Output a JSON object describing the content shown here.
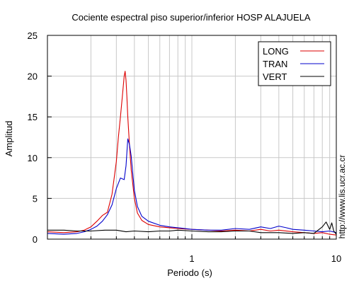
{
  "chart_data": {
    "type": "line",
    "title": "Cociente espectral piso superior/inferior  HOSP ALAJUELA",
    "xlabel": "Periodo (s)",
    "ylabel": "Amplitud",
    "xscale": "log",
    "xlim": [
      0.1,
      10
    ],
    "ylim": [
      0,
      25
    ],
    "x_tick_labels": [
      "1",
      "10"
    ],
    "y_ticks": [
      0,
      5,
      10,
      15,
      20,
      25
    ],
    "y_tick_labels": [
      "0",
      "5",
      "10",
      "15",
      "20",
      "25"
    ],
    "grid": true,
    "legend_position": "top-right",
    "side_text": "http://www.lis.ucr.ac.cr",
    "series": [
      {
        "name": "LONG",
        "color": "#dd0000",
        "x": [
          0.1,
          0.13,
          0.16,
          0.18,
          0.2,
          0.22,
          0.24,
          0.26,
          0.28,
          0.3,
          0.31,
          0.32,
          0.33,
          0.34,
          0.345,
          0.35,
          0.355,
          0.36,
          0.37,
          0.38,
          0.4,
          0.42,
          0.45,
          0.5,
          0.6,
          0.7,
          0.8,
          1.0,
          1.3,
          1.6,
          2.0,
          2.5,
          3.0,
          3.5,
          4.0,
          5.0,
          6.0,
          7.0,
          8.0,
          9.0,
          10.0
        ],
        "y": [
          0.9,
          0.8,
          0.9,
          1.1,
          1.5,
          2.2,
          2.9,
          3.3,
          5.5,
          9.5,
          12.5,
          15.0,
          17.5,
          20.0,
          20.6,
          19.5,
          17.5,
          15.0,
          11.5,
          8.5,
          5.0,
          3.2,
          2.3,
          1.8,
          1.5,
          1.4,
          1.3,
          1.2,
          1.1,
          1.0,
          1.1,
          1.0,
          1.2,
          1.0,
          1.1,
          0.9,
          0.8,
          0.7,
          0.8,
          0.6,
          0.5
        ]
      },
      {
        "name": "TRAN",
        "color": "#0000cc",
        "x": [
          0.1,
          0.13,
          0.16,
          0.18,
          0.2,
          0.22,
          0.24,
          0.26,
          0.28,
          0.3,
          0.32,
          0.34,
          0.35,
          0.36,
          0.37,
          0.38,
          0.39,
          0.4,
          0.42,
          0.45,
          0.5,
          0.6,
          0.7,
          0.8,
          1.0,
          1.3,
          1.6,
          2.0,
          2.5,
          3.0,
          3.5,
          4.0,
          4.5,
          5.0,
          6.0,
          7.0,
          8.0,
          9.0,
          10.0
        ],
        "y": [
          0.7,
          0.6,
          0.7,
          0.9,
          1.2,
          1.6,
          2.2,
          3.0,
          4.2,
          6.2,
          7.5,
          7.3,
          9.0,
          12.3,
          11.6,
          10.2,
          8.0,
          6.0,
          4.0,
          2.8,
          2.2,
          1.7,
          1.5,
          1.4,
          1.2,
          1.1,
          1.1,
          1.3,
          1.2,
          1.5,
          1.3,
          1.6,
          1.4,
          1.2,
          1.1,
          1.0,
          0.9,
          1.0,
          0.8
        ]
      },
      {
        "name": "VERT",
        "color": "#000000",
        "x": [
          0.1,
          0.13,
          0.16,
          0.2,
          0.25,
          0.3,
          0.35,
          0.4,
          0.5,
          0.6,
          0.7,
          0.8,
          1.0,
          1.3,
          1.6,
          2.0,
          2.5,
          3.0,
          4.0,
          5.0,
          6.0,
          7.0,
          8.0,
          8.5,
          9.0,
          9.3,
          9.6,
          10.0
        ],
        "y": [
          1.1,
          1.1,
          1.0,
          1.0,
          1.1,
          1.1,
          0.9,
          1.0,
          0.9,
          1.0,
          1.0,
          1.1,
          1.0,
          0.9,
          0.9,
          1.0,
          1.0,
          0.8,
          0.8,
          0.7,
          0.8,
          0.7,
          1.5,
          2.1,
          1.2,
          2.0,
          1.0,
          0.6
        ]
      }
    ]
  }
}
